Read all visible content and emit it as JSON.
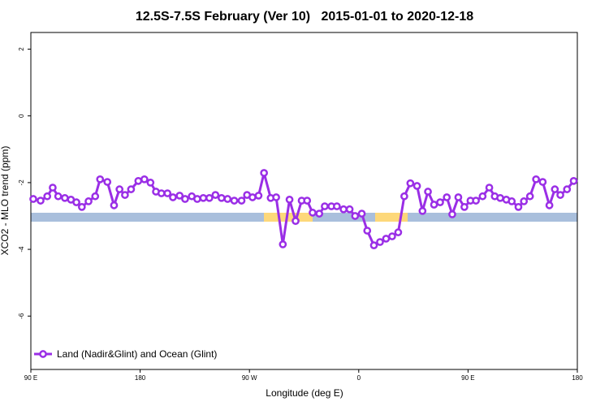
{
  "chart_data": {
    "type": "line",
    "title": "12.5S-7.5S February (Ver 10)   2015-01-01 to 2020-12-18",
    "x_label": "Longitude (deg E)",
    "y_label": "XCO2 - MLO trend (ppm)",
    "xlim": [
      90,
      540
    ],
    "ylim": [
      -7.6,
      2.5
    ],
    "xticks": [
      {
        "value": 90,
        "label": "90 E"
      },
      180,
      {
        "value": 270,
        "label": "90 W"
      },
      {
        "value": 360,
        "label": "0"
      },
      {
        "value": 450,
        "label": "90 E"
      },
      {
        "value": 540,
        "label": "180"
      }
    ],
    "yticks": [
      -6,
      -4,
      -2,
      0,
      2
    ],
    "legend": "bottom-left",
    "series": [
      {
        "name": "Land (Nadir&Glint) and Ocean (Glint)",
        "color": "#9a2ee6",
        "x": [
          92,
          98,
          103.5,
          108,
          112.5,
          118,
          123,
          127.5,
          132,
          137.5,
          143,
          147,
          153,
          158.5,
          163,
          167.5,
          172.5,
          178.5,
          183.5,
          188.5,
          193,
          197.5,
          202.5,
          207,
          212.5,
          217,
          222.5,
          227,
          232,
          237,
          242,
          247,
          252,
          257.5,
          263.5,
          268,
          272.5,
          277.5,
          282,
          287.5,
          292,
          297.5,
          303,
          308,
          313,
          317.5,
          322,
          327.5,
          332,
          337.5,
          342,
          347.5,
          352.5,
          357,
          362.5,
          367,
          372.5,
          377.5,
          382.5,
          387.5,
          392.5,
          397.5,
          402.5,
          408,
          412.5,
          417,
          422,
          427,
          432.5,
          437,
          442,
          447,
          452,
          456.5,
          462,
          467.5,
          472,
          476.5,
          481.5,
          486,
          491.5,
          496,
          501,
          506,
          511.5,
          517,
          521.5,
          526,
          531.5,
          537
        ],
        "values": [
          -2.49,
          -2.54,
          -2.41,
          -2.15,
          -2.41,
          -2.46,
          -2.51,
          -2.59,
          -2.73,
          -2.56,
          -2.41,
          -1.9,
          -1.98,
          -2.68,
          -2.2,
          -2.37,
          -2.2,
          -1.95,
          -1.9,
          -2.0,
          -2.27,
          -2.32,
          -2.32,
          -2.44,
          -2.39,
          -2.49,
          -2.41,
          -2.49,
          -2.46,
          -2.46,
          -2.37,
          -2.46,
          -2.49,
          -2.54,
          -2.54,
          -2.37,
          -2.44,
          -2.39,
          -1.71,
          -2.46,
          -2.44,
          -3.85,
          -2.51,
          -3.15,
          -2.54,
          -2.54,
          -2.9,
          -2.93,
          -2.71,
          -2.71,
          -2.71,
          -2.8,
          -2.8,
          -3.0,
          -2.93,
          -3.44,
          -3.88,
          -3.78,
          -3.68,
          -3.61,
          -3.49,
          -2.41,
          -2.02,
          -2.1,
          -2.85,
          -2.27,
          -2.66,
          -2.59,
          -2.44,
          -2.95,
          -2.44,
          -2.73,
          -2.54,
          -2.54,
          -2.41,
          -2.15,
          -2.41,
          -2.46,
          -2.51,
          -2.56,
          -2.73,
          -2.56,
          -2.41,
          -1.9,
          -1.98,
          -2.68,
          -2.2,
          -2.37,
          -2.2,
          -1.95
        ]
      }
    ]
  }
}
